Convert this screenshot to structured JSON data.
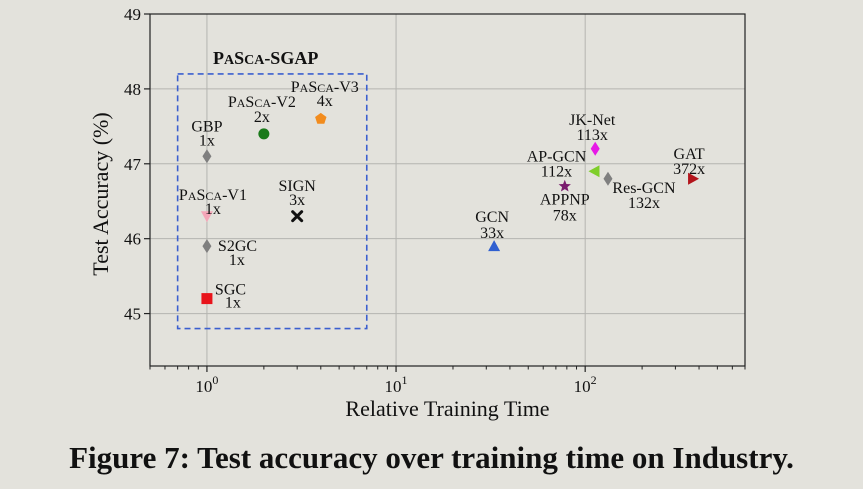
{
  "caption": "Figure 7: Test accuracy over training time on Industry.",
  "chart_data": {
    "type": "scatter",
    "title": "",
    "xlabel": "Relative Training Time",
    "ylabel": "Test Accuracy (%)",
    "xscale": "log",
    "xlim": [
      0.5,
      700
    ],
    "ylim": [
      44.3,
      49
    ],
    "x_ticks": [
      {
        "value": 1,
        "base": "10",
        "exp": "0"
      },
      {
        "value": 10,
        "base": "10",
        "exp": "1"
      },
      {
        "value": 100,
        "base": "10",
        "exp": "2"
      }
    ],
    "y_ticks": [
      45,
      46,
      47,
      48,
      49
    ],
    "grid": true,
    "group": {
      "label": "PaSca-SGAP",
      "x_range": [
        0.7,
        7
      ],
      "y_range": [
        44.8,
        48.2
      ],
      "color": "#3b5fcf"
    },
    "points": [
      {
        "name": "GBP",
        "speed": "1x",
        "x": 1,
        "y": 47.1,
        "marker": "diamond",
        "color": "#7f7f7f"
      },
      {
        "name": "PaSca-V2",
        "speed": "2x",
        "x": 2,
        "y": 47.4,
        "marker": "circle",
        "color": "#1a7a1a"
      },
      {
        "name": "PaSca-V3",
        "speed": "4x",
        "x": 4,
        "y": 47.6,
        "marker": "pentagon",
        "color": "#f28c1e"
      },
      {
        "name": "PaSca-V1",
        "speed": "1x",
        "x": 1,
        "y": 46.3,
        "marker": "triangle-down",
        "color": "#f4a6b8"
      },
      {
        "name": "SIGN",
        "speed": "3x",
        "x": 3,
        "y": 46.3,
        "marker": "x",
        "color": "#111111"
      },
      {
        "name": "S2GC",
        "speed": "1x",
        "x": 1,
        "y": 45.9,
        "marker": "diamond",
        "color": "#7f7f7f"
      },
      {
        "name": "SGC",
        "speed": "1x",
        "x": 1,
        "y": 45.2,
        "marker": "square",
        "color": "#e8141b"
      },
      {
        "name": "GCN",
        "speed": "33x",
        "x": 33,
        "y": 45.9,
        "marker": "triangle-up",
        "color": "#2f5fd0"
      },
      {
        "name": "JK-Net",
        "speed": "113x",
        "x": 113,
        "y": 47.2,
        "marker": "diamond",
        "color": "#e619e6"
      },
      {
        "name": "AP-GCN",
        "speed": "112x",
        "x": 112,
        "y": 46.9,
        "marker": "triangle-left",
        "color": "#7fce2a"
      },
      {
        "name": "APPNP",
        "speed": "78x",
        "x": 78,
        "y": 46.7,
        "marker": "star",
        "color": "#7a1b6e"
      },
      {
        "name": "Res-GCN",
        "speed": "132x",
        "x": 132,
        "y": 46.8,
        "marker": "diamond",
        "color": "#7f7f7f"
      },
      {
        "name": "GAT",
        "speed": "372x",
        "x": 372,
        "y": 46.8,
        "marker": "triangle-right",
        "color": "#b3141b"
      }
    ]
  }
}
